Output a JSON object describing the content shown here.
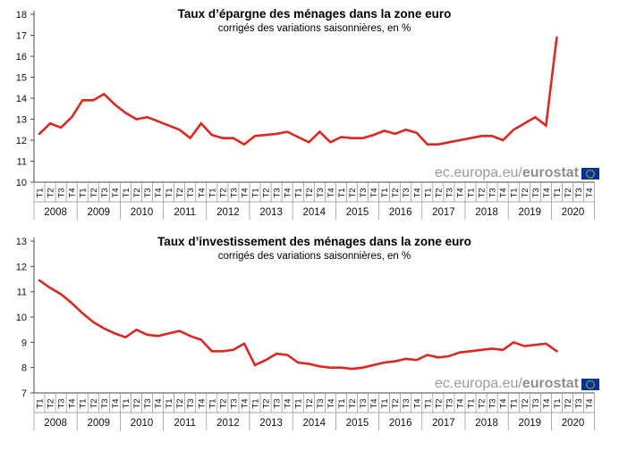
{
  "watermark": {
    "prefix": "ec.europa.eu/",
    "bold": "eurostat",
    "text_color": "#9b9b9b",
    "flag_blue": "#003399",
    "flag_star_yellow": "#ffcc00"
  },
  "chart_data": [
    {
      "type": "line",
      "title": "Taux d’épargne des ménages dans la zone euro",
      "subtitle": "corrigés des variations saisonnières, en %",
      "unit": "%",
      "ylim": [
        10,
        18
      ],
      "ytick_step": 1,
      "grid": false,
      "legend": "none",
      "line_color": "#dc281e",
      "years": [
        "2008",
        "2009",
        "2010",
        "2011",
        "2012",
        "2013",
        "2014",
        "2015",
        "2016",
        "2017",
        "2018",
        "2019",
        "2020"
      ],
      "quarters": [
        "T1",
        "T2",
        "T3",
        "T4"
      ],
      "x_note": "one value per quarter from 2008-T1 to 2020-T1",
      "values": [
        12.3,
        12.8,
        12.6,
        13.1,
        13.9,
        13.9,
        14.2,
        13.7,
        13.3,
        13.0,
        13.1,
        12.9,
        12.7,
        12.5,
        12.1,
        12.8,
        12.25,
        12.1,
        12.1,
        11.8,
        12.2,
        12.25,
        12.3,
        12.4,
        12.15,
        11.9,
        12.4,
        11.9,
        12.15,
        12.1,
        12.1,
        12.25,
        12.45,
        12.3,
        12.5,
        12.35,
        11.8,
        11.8,
        11.9,
        12.0,
        12.1,
        12.2,
        12.2,
        12.0,
        12.5,
        12.8,
        13.1,
        12.7,
        16.9
      ]
    },
    {
      "type": "line",
      "title": "Taux d’investissement des ménages dans la zone euro",
      "subtitle": "corrigés des variations saisonnières, en %",
      "unit": "%",
      "ylim": [
        7,
        13
      ],
      "ytick_step": 1,
      "grid": false,
      "legend": "none",
      "line_color": "#dc281e",
      "years": [
        "2008",
        "2009",
        "2010",
        "2011",
        "2012",
        "2013",
        "2014",
        "2015",
        "2016",
        "2017",
        "2018",
        "2019",
        "2020"
      ],
      "quarters": [
        "T1",
        "T2",
        "T3",
        "T4"
      ],
      "x_note": "one value per quarter from 2008-T1 to 2020-T1",
      "values": [
        11.45,
        11.15,
        10.9,
        10.55,
        10.15,
        9.8,
        9.55,
        9.35,
        9.2,
        9.5,
        9.3,
        9.25,
        9.35,
        9.45,
        9.25,
        9.1,
        8.65,
        8.65,
        8.7,
        8.95,
        8.1,
        8.3,
        8.55,
        8.5,
        8.2,
        8.15,
        8.05,
        8.0,
        8.0,
        7.95,
        8.0,
        8.1,
        8.2,
        8.25,
        8.35,
        8.3,
        8.5,
        8.4,
        8.45,
        8.6,
        8.65,
        8.7,
        8.75,
        8.7,
        9.0,
        8.85,
        8.9,
        8.95,
        8.65
      ]
    }
  ]
}
